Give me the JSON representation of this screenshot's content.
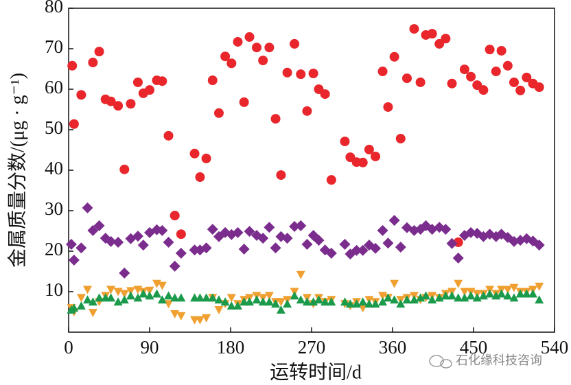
{
  "chart_data": {
    "type": "scatter",
    "xlabel": "运转时间/d",
    "ylabel": "金属质量分数/(μg · g⁻¹)",
    "watermark": "石化缘科技咨询",
    "xlim": [
      0,
      540
    ],
    "xticks": [
      0,
      90,
      180,
      270,
      360,
      450,
      540
    ],
    "ylim": [
      0,
      80
    ],
    "yticks": [
      10,
      20,
      30,
      40,
      50,
      60,
      70,
      80
    ],
    "series": [
      {
        "color": "#e8262b",
        "marker": "circle",
        "x": [
          4,
          6,
          14,
          27,
          34,
          41,
          47,
          55,
          62,
          69,
          77,
          83,
          90,
          98,
          104,
          111,
          118,
          125,
          140,
          146,
          153,
          160,
          167,
          174,
          181,
          188,
          195,
          201,
          209,
          216,
          223,
          230,
          236,
          243,
          251,
          258,
          265,
          272,
          278,
          285,
          292,
          307,
          313,
          320,
          327,
          334,
          341,
          349,
          355,
          362,
          369,
          376,
          384,
          391,
          397,
          404,
          412,
          419,
          426,
          433,
          440,
          447,
          454,
          461,
          468,
          475,
          481,
          488,
          495,
          502,
          509,
          516,
          523
        ],
        "values": [
          65.8,
          51.4,
          58.6,
          66.6,
          69.3,
          57.5,
          57.0,
          55.9,
          40.2,
          56.4,
          61.7,
          59.0,
          59.8,
          62.2,
          62.0,
          48.5,
          28.8,
          24.2,
          44.1,
          38.3,
          42.9,
          62.2,
          54.1,
          68.1,
          66.4,
          71.7,
          56.8,
          72.9,
          70.3,
          67.1,
          70.3,
          52.7,
          38.8,
          64.1,
          71.2,
          63.7,
          54.6,
          63.9,
          60.0,
          58.8,
          37.6,
          47.1,
          43.2,
          42.0,
          41.9,
          45.1,
          43.4,
          64.4,
          55.6,
          68.0,
          47.8,
          62.7,
          74.9,
          61.7,
          73.4,
          73.7,
          71.2,
          72.5,
          61.4,
          22.2,
          64.9,
          63.1,
          61.0,
          59.8,
          69.8,
          64.4,
          69.5,
          65.8,
          61.7,
          59.7,
          62.9,
          61.4,
          60.5
        ]
      },
      {
        "color": "#7b2d8e",
        "marker": "diamond",
        "x": [
          3,
          6,
          14,
          21,
          27,
          34,
          41,
          47,
          55,
          62,
          69,
          77,
          83,
          90,
          98,
          104,
          111,
          118,
          125,
          140,
          146,
          153,
          160,
          167,
          174,
          181,
          188,
          195,
          201,
          209,
          216,
          223,
          230,
          236,
          243,
          251,
          258,
          265,
          272,
          278,
          285,
          292,
          307,
          313,
          320,
          327,
          334,
          341,
          349,
          355,
          362,
          369,
          376,
          384,
          391,
          397,
          404,
          412,
          419,
          426,
          433,
          440,
          447,
          454,
          461,
          468,
          475,
          481,
          488,
          495,
          502,
          509,
          516,
          523
        ],
        "values": [
          21.7,
          17.8,
          20.8,
          30.7,
          25.1,
          26.3,
          23.2,
          22.4,
          22.2,
          14.6,
          23.1,
          23.7,
          21.5,
          24.6,
          25.3,
          25.1,
          22.2,
          16.3,
          19.5,
          20.3,
          20.3,
          20.8,
          25.4,
          23.6,
          24.6,
          24.1,
          24.6,
          20.5,
          24.9,
          23.9,
          23.2,
          25.9,
          20.8,
          23.6,
          23.2,
          26.1,
          26.3,
          21.7,
          23.9,
          22.7,
          20.3,
          19.5,
          21.7,
          19.3,
          20.2,
          20.2,
          21.5,
          20.7,
          25.1,
          22.0,
          27.6,
          21.0,
          25.8,
          25.1,
          25.4,
          26.3,
          25.4,
          25.9,
          25.4,
          21.9,
          18.3,
          23.9,
          24.6,
          24.4,
          23.6,
          24.2,
          23.6,
          24.2,
          23.4,
          22.4,
          22.7,
          23.1,
          22.5,
          21.5
        ]
      },
      {
        "color": "#f0a030",
        "marker": "triangle-down",
        "x": [
          3,
          6,
          14,
          21,
          27,
          34,
          41,
          47,
          55,
          62,
          69,
          77,
          83,
          90,
          98,
          104,
          111,
          118,
          125,
          140,
          146,
          153,
          160,
          167,
          174,
          181,
          188,
          195,
          201,
          209,
          216,
          223,
          230,
          236,
          243,
          251,
          258,
          265,
          272,
          278,
          285,
          292,
          307,
          313,
          320,
          327,
          334,
          341,
          349,
          355,
          362,
          369,
          376,
          384,
          391,
          397,
          404,
          412,
          419,
          426,
          433,
          440,
          447,
          454,
          461,
          468,
          475,
          481,
          488,
          495,
          502,
          509,
          516,
          523
        ],
        "values": [
          6.0,
          5.0,
          8.5,
          10.5,
          4.8,
          7.5,
          9.0,
          10.5,
          10.0,
          9.5,
          10.2,
          10.5,
          10.0,
          10.3,
          12.0,
          11.5,
          7.0,
          4.5,
          4.0,
          3.0,
          3.0,
          3.5,
          8.5,
          5.5,
          7.0,
          8.5,
          7.0,
          8.0,
          8.5,
          9.0,
          8.5,
          9.0,
          7.5,
          7.5,
          8.0,
          10.0,
          14.2,
          8.5,
          7.0,
          8.5,
          7.5,
          8.0,
          7.0,
          6.5,
          7.5,
          6.0,
          8.0,
          7.5,
          9.0,
          8.5,
          12.0,
          8.0,
          8.5,
          9.0,
          8.0,
          8.5,
          9.0,
          8.5,
          9.5,
          10.0,
          12.0,
          10.0,
          10.0,
          9.5,
          9.5,
          10.5,
          9.5,
          10.5,
          10.5,
          11.0,
          10.0,
          10.0,
          10.5,
          11.3
        ]
      },
      {
        "color": "#1a9a4a",
        "marker": "triangle-up",
        "x": [
          3,
          6,
          14,
          21,
          27,
          34,
          41,
          47,
          55,
          62,
          69,
          77,
          83,
          90,
          98,
          104,
          111,
          118,
          125,
          140,
          146,
          153,
          160,
          167,
          174,
          181,
          188,
          195,
          201,
          209,
          216,
          223,
          230,
          236,
          243,
          251,
          258,
          265,
          272,
          278,
          285,
          292,
          307,
          313,
          320,
          327,
          334,
          341,
          349,
          355,
          362,
          369,
          376,
          384,
          391,
          397,
          404,
          412,
          419,
          426,
          433,
          440,
          447,
          454,
          461,
          468,
          475,
          481,
          488,
          495,
          502,
          509,
          516,
          523
        ],
        "values": [
          5.5,
          6.0,
          6.5,
          8.0,
          7.5,
          8.5,
          8.5,
          8.5,
          7.5,
          8.0,
          9.0,
          8.5,
          9.5,
          9.0,
          9.5,
          8.0,
          9.0,
          8.5,
          8.5,
          8.5,
          8.5,
          8.5,
          8.5,
          8.0,
          7.5,
          6.5,
          6.5,
          7.5,
          7.5,
          8.0,
          7.5,
          7.5,
          7.0,
          5.5,
          7.0,
          9.0,
          8.0,
          7.5,
          7.5,
          8.0,
          7.5,
          7.5,
          7.5,
          7.0,
          7.0,
          7.5,
          7.0,
          7.0,
          7.5,
          8.5,
          8.0,
          7.0,
          8.0,
          8.0,
          8.5,
          9.0,
          8.0,
          8.5,
          9.0,
          9.0,
          8.5,
          8.5,
          9.0,
          8.5,
          9.0,
          9.5,
          9.0,
          9.5,
          9.0,
          8.5,
          9.5,
          9.5,
          9.5,
          8.0
        ]
      }
    ]
  }
}
